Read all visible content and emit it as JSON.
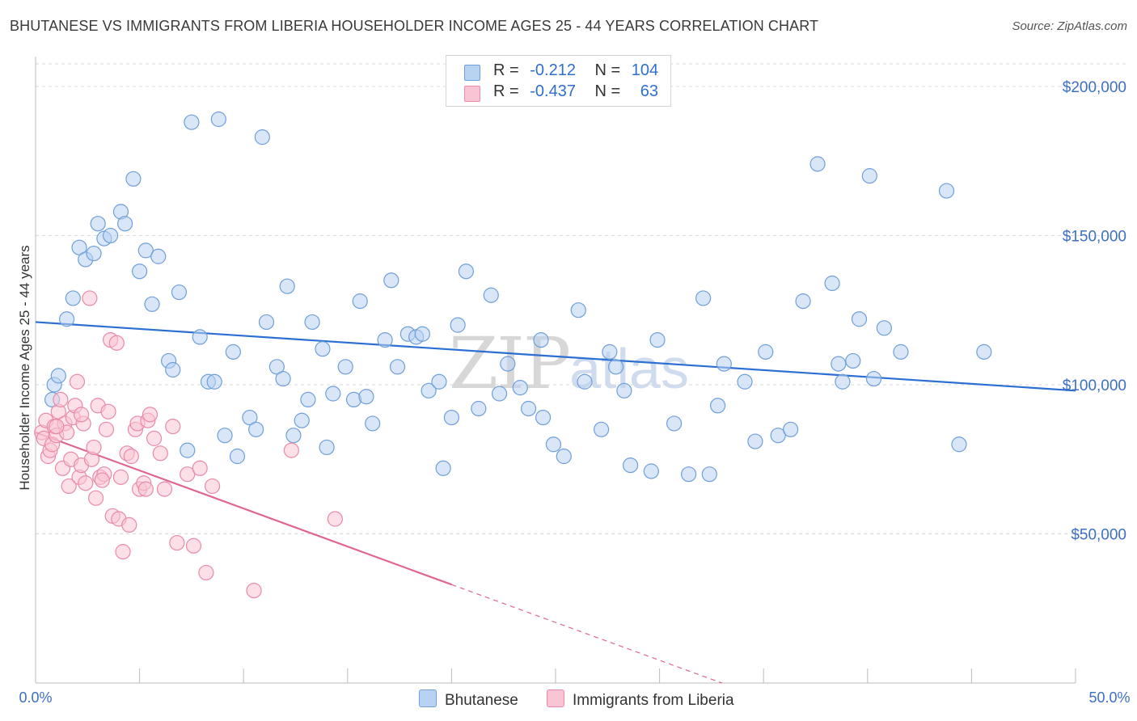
{
  "title": "BHUTANESE VS IMMIGRANTS FROM LIBERIA HOUSEHOLDER INCOME AGES 25 - 44 YEARS CORRELATION CHART",
  "source": "Source: ZipAtlas.com",
  "watermark": {
    "zip": "ZIP",
    "atlas": "atlas"
  },
  "legend": {
    "rows": [
      {
        "r_label": "R =",
        "r_value": "-0.212",
        "n_label": "N =",
        "n_value": "104",
        "color": "#a9c8f0"
      },
      {
        "r_label": "R =",
        "r_value": "-0.437",
        "n_label": "N =",
        "n_value": "63",
        "color": "#f7b6c8"
      }
    ]
  },
  "bottom_legend": [
    "Bhutanese",
    "Immigrants from Liberia"
  ],
  "colors": {
    "blue_fill": "#b8d2f2",
    "blue_stroke": "#6f9fd8",
    "blue_line": "#2a6fd1",
    "pink_fill": "#f9c5d4",
    "pink_stroke": "#e88aa8",
    "pink_line": "#e06690",
    "grid": "#d9d9d9",
    "tick_text": "#3d6fc4"
  },
  "chart_data": {
    "type": "scatter",
    "title": "BHUTANESE VS IMMIGRANTS FROM LIBERIA HOUSEHOLDER INCOME AGES 25 - 44 YEARS CORRELATION CHART",
    "xlabel": "",
    "ylabel": "Householder Income Ages 25 - 44 years",
    "xlim": [
      0,
      50
    ],
    "ylim": [
      0,
      210000
    ],
    "x_tick_labels": [
      "0.0%",
      "50.0%"
    ],
    "y_ticks": [
      50000,
      100000,
      150000,
      200000
    ],
    "y_tick_labels": [
      "$50,000",
      "$100,000",
      "$150,000",
      "$200,000"
    ],
    "grid": "horizontal dashed",
    "legend_position": "top-center",
    "series": [
      {
        "name": "Bhutanese",
        "trend": {
          "x": [
            0,
            50
          ],
          "y": [
            121000,
            98000
          ],
          "style": "solid"
        },
        "points": [
          [
            0.8,
            95000
          ],
          [
            0.9,
            100000
          ],
          [
            1.1,
            103000
          ],
          [
            1.5,
            122000
          ],
          [
            1.8,
            129000
          ],
          [
            2.1,
            146000
          ],
          [
            2.4,
            142000
          ],
          [
            2.8,
            144000
          ],
          [
            3.0,
            154000
          ],
          [
            3.3,
            149000
          ],
          [
            3.6,
            150000
          ],
          [
            4.1,
            158000
          ],
          [
            4.3,
            154000
          ],
          [
            4.7,
            169000
          ],
          [
            5.0,
            138000
          ],
          [
            5.3,
            145000
          ],
          [
            5.6,
            127000
          ],
          [
            5.9,
            143000
          ],
          [
            6.4,
            108000
          ],
          [
            6.6,
            105000
          ],
          [
            6.9,
            131000
          ],
          [
            7.3,
            78000
          ],
          [
            7.5,
            188000
          ],
          [
            7.9,
            116000
          ],
          [
            8.3,
            101000
          ],
          [
            8.6,
            101000
          ],
          [
            8.8,
            189000
          ],
          [
            9.1,
            83000
          ],
          [
            9.5,
            111000
          ],
          [
            9.7,
            76000
          ],
          [
            10.3,
            89000
          ],
          [
            10.6,
            85000
          ],
          [
            10.9,
            183000
          ],
          [
            11.1,
            121000
          ],
          [
            11.6,
            106000
          ],
          [
            11.9,
            102000
          ],
          [
            12.1,
            133000
          ],
          [
            12.4,
            83000
          ],
          [
            12.8,
            88000
          ],
          [
            13.1,
            95000
          ],
          [
            13.3,
            121000
          ],
          [
            13.8,
            112000
          ],
          [
            14.0,
            79000
          ],
          [
            14.3,
            97000
          ],
          [
            14.9,
            106000
          ],
          [
            15.3,
            95000
          ],
          [
            15.6,
            128000
          ],
          [
            15.9,
            96000
          ],
          [
            16.2,
            87000
          ],
          [
            16.8,
            115000
          ],
          [
            17.1,
            135000
          ],
          [
            17.4,
            106000
          ],
          [
            17.9,
            117000
          ],
          [
            18.3,
            116000
          ],
          [
            18.6,
            117000
          ],
          [
            18.9,
            98000
          ],
          [
            19.4,
            101000
          ],
          [
            19.6,
            72000
          ],
          [
            20.0,
            89000
          ],
          [
            20.3,
            120000
          ],
          [
            20.7,
            138000
          ],
          [
            21.3,
            92000
          ],
          [
            21.9,
            130000
          ],
          [
            22.3,
            97000
          ],
          [
            22.7,
            107000
          ],
          [
            23.3,
            99000
          ],
          [
            23.7,
            92000
          ],
          [
            24.3,
            115000
          ],
          [
            24.4,
            89000
          ],
          [
            24.9,
            80000
          ],
          [
            25.4,
            76000
          ],
          [
            26.1,
            125000
          ],
          [
            26.4,
            101000
          ],
          [
            27.2,
            85000
          ],
          [
            27.6,
            111000
          ],
          [
            27.9,
            106000
          ],
          [
            28.3,
            98000
          ],
          [
            28.6,
            73000
          ],
          [
            29.6,
            71000
          ],
          [
            29.9,
            115000
          ],
          [
            30.7,
            87000
          ],
          [
            31.4,
            70000
          ],
          [
            32.1,
            129000
          ],
          [
            32.4,
            70000
          ],
          [
            32.8,
            93000
          ],
          [
            33.1,
            107000
          ],
          [
            34.1,
            101000
          ],
          [
            34.6,
            81000
          ],
          [
            35.1,
            111000
          ],
          [
            35.7,
            83000
          ],
          [
            36.3,
            85000
          ],
          [
            36.9,
            128000
          ],
          [
            37.6,
            174000
          ],
          [
            38.3,
            134000
          ],
          [
            38.6,
            107000
          ],
          [
            38.8,
            101000
          ],
          [
            39.3,
            108000
          ],
          [
            39.6,
            122000
          ],
          [
            40.1,
            170000
          ],
          [
            40.3,
            102000
          ],
          [
            40.8,
            119000
          ],
          [
            41.6,
            111000
          ],
          [
            43.8,
            165000
          ],
          [
            44.4,
            80000
          ],
          [
            45.6,
            111000
          ]
        ]
      },
      {
        "name": "Immigrants from Liberia",
        "trend": {
          "x": [
            0,
            20
          ],
          "y": [
            84000,
            33000
          ],
          "style": "solid",
          "extended_dashed_to": [
            33,
            0
          ]
        },
        "points": [
          [
            0.3,
            84000
          ],
          [
            0.4,
            82000
          ],
          [
            0.5,
            88000
          ],
          [
            0.6,
            76000
          ],
          [
            0.7,
            78000
          ],
          [
            0.8,
            80000
          ],
          [
            0.9,
            86000
          ],
          [
            1.0,
            83000
          ],
          [
            1.1,
            91000
          ],
          [
            1.2,
            95000
          ],
          [
            1.3,
            72000
          ],
          [
            1.4,
            87000
          ],
          [
            1.5,
            84000
          ],
          [
            1.6,
            66000
          ],
          [
            1.7,
            75000
          ],
          [
            1.8,
            89000
          ],
          [
            1.9,
            93000
          ],
          [
            2.0,
            101000
          ],
          [
            2.1,
            69000
          ],
          [
            2.2,
            73000
          ],
          [
            2.3,
            87000
          ],
          [
            2.4,
            67000
          ],
          [
            2.6,
            129000
          ],
          [
            2.7,
            75000
          ],
          [
            2.8,
            79000
          ],
          [
            2.9,
            62000
          ],
          [
            3.0,
            93000
          ],
          [
            3.1,
            69000
          ],
          [
            3.3,
            70000
          ],
          [
            3.4,
            85000
          ],
          [
            3.5,
            91000
          ],
          [
            3.6,
            115000
          ],
          [
            3.7,
            56000
          ],
          [
            3.9,
            114000
          ],
          [
            4.0,
            55000
          ],
          [
            4.1,
            69000
          ],
          [
            4.2,
            44000
          ],
          [
            4.4,
            77000
          ],
          [
            4.5,
            53000
          ],
          [
            4.6,
            76000
          ],
          [
            4.8,
            85000
          ],
          [
            4.9,
            87000
          ],
          [
            5.0,
            65000
          ],
          [
            5.2,
            67000
          ],
          [
            5.4,
            88000
          ],
          [
            5.5,
            90000
          ],
          [
            5.7,
            82000
          ],
          [
            6.0,
            77000
          ],
          [
            6.2,
            65000
          ],
          [
            6.6,
            86000
          ],
          [
            6.8,
            47000
          ],
          [
            7.3,
            70000
          ],
          [
            7.6,
            46000
          ],
          [
            7.9,
            72000
          ],
          [
            8.2,
            37000
          ],
          [
            8.5,
            66000
          ],
          [
            10.5,
            31000
          ],
          [
            12.3,
            78000
          ],
          [
            14.4,
            55000
          ],
          [
            2.2,
            90000
          ],
          [
            1.0,
            86000
          ],
          [
            3.2,
            68000
          ],
          [
            5.3,
            65000
          ]
        ]
      }
    ]
  }
}
